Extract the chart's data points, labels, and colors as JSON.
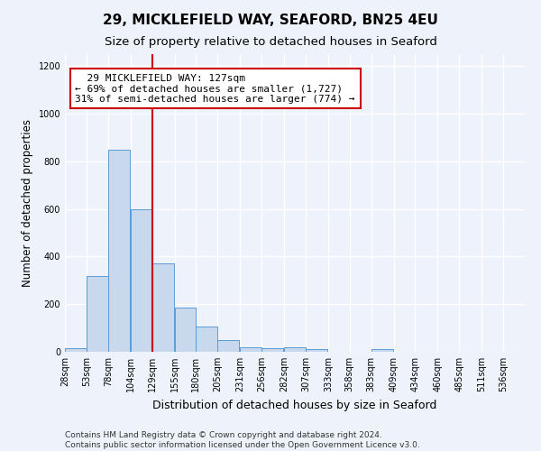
{
  "title1": "29, MICKLEFIELD WAY, SEAFORD, BN25 4EU",
  "title2": "Size of property relative to detached houses in Seaford",
  "xlabel": "Distribution of detached houses by size in Seaford",
  "ylabel": "Number of detached properties",
  "bar_values": [
    15,
    320,
    850,
    600,
    370,
    185,
    105,
    48,
    20,
    15,
    18,
    12,
    0,
    0,
    12,
    0,
    0,
    0,
    0,
    0
  ],
  "bin_labels": [
    "28sqm",
    "53sqm",
    "78sqm",
    "104sqm",
    "129sqm",
    "155sqm",
    "180sqm",
    "205sqm",
    "231sqm",
    "256sqm",
    "282sqm",
    "307sqm",
    "333sqm",
    "358sqm",
    "383sqm",
    "409sqm",
    "434sqm",
    "460sqm",
    "485sqm",
    "511sqm",
    "536sqm"
  ],
  "bin_edges": [
    28,
    53,
    78,
    104,
    129,
    155,
    180,
    205,
    231,
    256,
    282,
    307,
    333,
    358,
    383,
    409,
    434,
    460,
    485,
    511,
    536
  ],
  "bar_color": "#c9d9ed",
  "bar_edge_color": "#5b9bd5",
  "background_color": "#eef3fb",
  "grid_color": "#ffffff",
  "vline_x": 129,
  "vline_color": "#cc0000",
  "annotation_text": "  29 MICKLEFIELD WAY: 127sqm\n← 69% of detached houses are smaller (1,727)\n31% of semi-detached houses are larger (774) →",
  "annotation_box_color": "#ffffff",
  "annotation_box_edge": "#cc0000",
  "ylim": [
    0,
    1250
  ],
  "yticks": [
    0,
    200,
    400,
    600,
    800,
    1000,
    1200
  ],
  "footer_text": "Contains HM Land Registry data © Crown copyright and database right 2024.\nContains public sector information licensed under the Open Government Licence v3.0.",
  "title1_fontsize": 11,
  "title2_fontsize": 9.5,
  "xlabel_fontsize": 9,
  "ylabel_fontsize": 8.5,
  "tick_fontsize": 7,
  "annotation_fontsize": 8,
  "footer_fontsize": 6.5
}
